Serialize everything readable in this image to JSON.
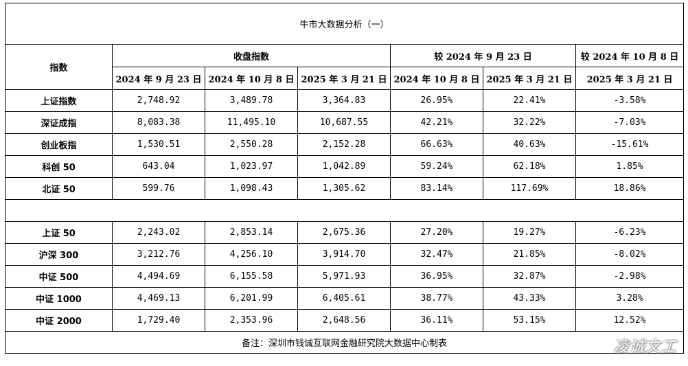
{
  "title": "牛市大数据分析（一）",
  "headers": {
    "index_label": "指数",
    "group_close": "收盘指数",
    "group_since_sep": "较 2024 年 9 月 23 日",
    "group_since_oct": "较 2024 年 10 月 8 日",
    "date_sep23_2024": "2024 年 9 月 23 日",
    "date_oct8_2024": "2024 年 10 月 8 日",
    "date_mar21_2025": "2025 年 3 月 21 日"
  },
  "group1": [
    {
      "name": "上证指数",
      "c1": "2,748.92",
      "c2": "3,489.78",
      "c3": "3,364.83",
      "p1": "26.95%",
      "p2": "22.41%",
      "p3": "-3.58%"
    },
    {
      "name": "深证成指",
      "c1": "8,083.38",
      "c2": "11,495.10",
      "c3": "10,687.55",
      "p1": "42.21%",
      "p2": "32.22%",
      "p3": "-7.03%"
    },
    {
      "name": "创业板指",
      "c1": "1,530.51",
      "c2": "2,550.28",
      "c3": "2,152.28",
      "p1": "66.63%",
      "p2": "40.63%",
      "p3": "-15.61%"
    },
    {
      "name": "科创 50",
      "c1": "643.04",
      "c2": "1,023.97",
      "c3": "1,042.89",
      "p1": "59.24%",
      "p2": "62.18%",
      "p3": "1.85%"
    },
    {
      "name": "北证 50",
      "c1": "599.76",
      "c2": "1,098.43",
      "c3": "1,305.62",
      "p1": "83.14%",
      "p2": "117.69%",
      "p3": "18.86%"
    }
  ],
  "group2": [
    {
      "name": "上证 50",
      "c1": "2,243.02",
      "c2": "2,853.14",
      "c3": "2,675.36",
      "p1": "27.20%",
      "p2": "19.27%",
      "p3": "-6.23%"
    },
    {
      "name": "沪深 300",
      "c1": "3,212.76",
      "c2": "4,256.10",
      "c3": "3,914.70",
      "p1": "32.47%",
      "p2": "21.85%",
      "p3": "-8.02%"
    },
    {
      "name": "中证 500",
      "c1": "4,494.69",
      "c2": "6,155.58",
      "c3": "5,971.93",
      "p1": "36.95%",
      "p2": "32.87%",
      "p3": "-2.98%"
    },
    {
      "name": "中证 1000",
      "c1": "4,469.13",
      "c2": "6,201.99",
      "c3": "6,405.61",
      "p1": "38.77%",
      "p2": "43.33%",
      "p3": "3.28%"
    },
    {
      "name": "中证 2000",
      "c1": "1,729.40",
      "c2": "2,353.96",
      "c3": "2,648.56",
      "p1": "36.11%",
      "p2": "53.15%",
      "p3": "12.52%"
    }
  ],
  "footnote": "备注：深圳市钱诚互联网金融研究院大数据中心制表",
  "watermark": "凌诚文工"
}
